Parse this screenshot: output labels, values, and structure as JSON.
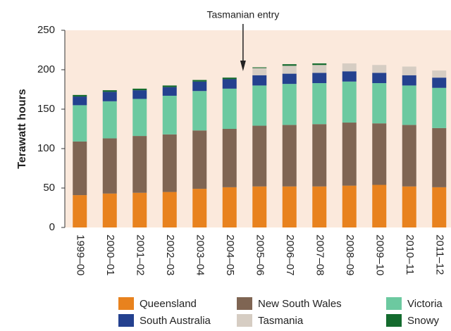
{
  "chart_data": {
    "type": "stacked_bar",
    "annotation": "Tasmanian entry",
    "y_label": "Terawatt hours",
    "categories": [
      "1999–00",
      "2000–01",
      "2001–02",
      "2002–03",
      "2003–04",
      "2004–05",
      "2005–06",
      "2006–07",
      "2007–08",
      "2008–09",
      "2009–10",
      "2010–11",
      "2011–12"
    ],
    "series": [
      {
        "name": "Queensland",
        "color": "#e8821e",
        "values": [
          41,
          43,
          44,
          45,
          49,
          51,
          52,
          52,
          52,
          53,
          54,
          52,
          51
        ]
      },
      {
        "name": "New South Wales",
        "color": "#7f6553",
        "values": [
          68,
          70,
          72,
          73,
          74,
          74,
          77,
          78,
          79,
          80,
          78,
          78,
          75
        ]
      },
      {
        "name": "Victoria",
        "color": "#6cc9a0",
        "values": [
          46,
          47,
          47,
          49,
          50,
          51,
          51,
          52,
          52,
          52,
          51,
          50,
          51
        ]
      },
      {
        "name": "South Australia",
        "color": "#24418f",
        "values": [
          11,
          12,
          11,
          11,
          12,
          12,
          13,
          13,
          13,
          13,
          13,
          13,
          13
        ]
      },
      {
        "name": "Tasmania",
        "color": "#d6cdc3",
        "values": [
          0,
          0,
          0,
          0,
          0,
          0,
          9,
          10,
          10,
          10,
          10,
          11,
          9
        ]
      },
      {
        "name": "Snowy",
        "color": "#146b2e",
        "values": [
          2,
          2,
          2,
          2,
          2,
          2,
          1,
          2,
          2,
          0,
          0,
          0,
          0
        ]
      }
    ],
    "ylim": [
      0,
      250
    ],
    "yticks": [
      0,
      50,
      100,
      150,
      200,
      250
    ],
    "plot_background": "#fbe9dc"
  }
}
